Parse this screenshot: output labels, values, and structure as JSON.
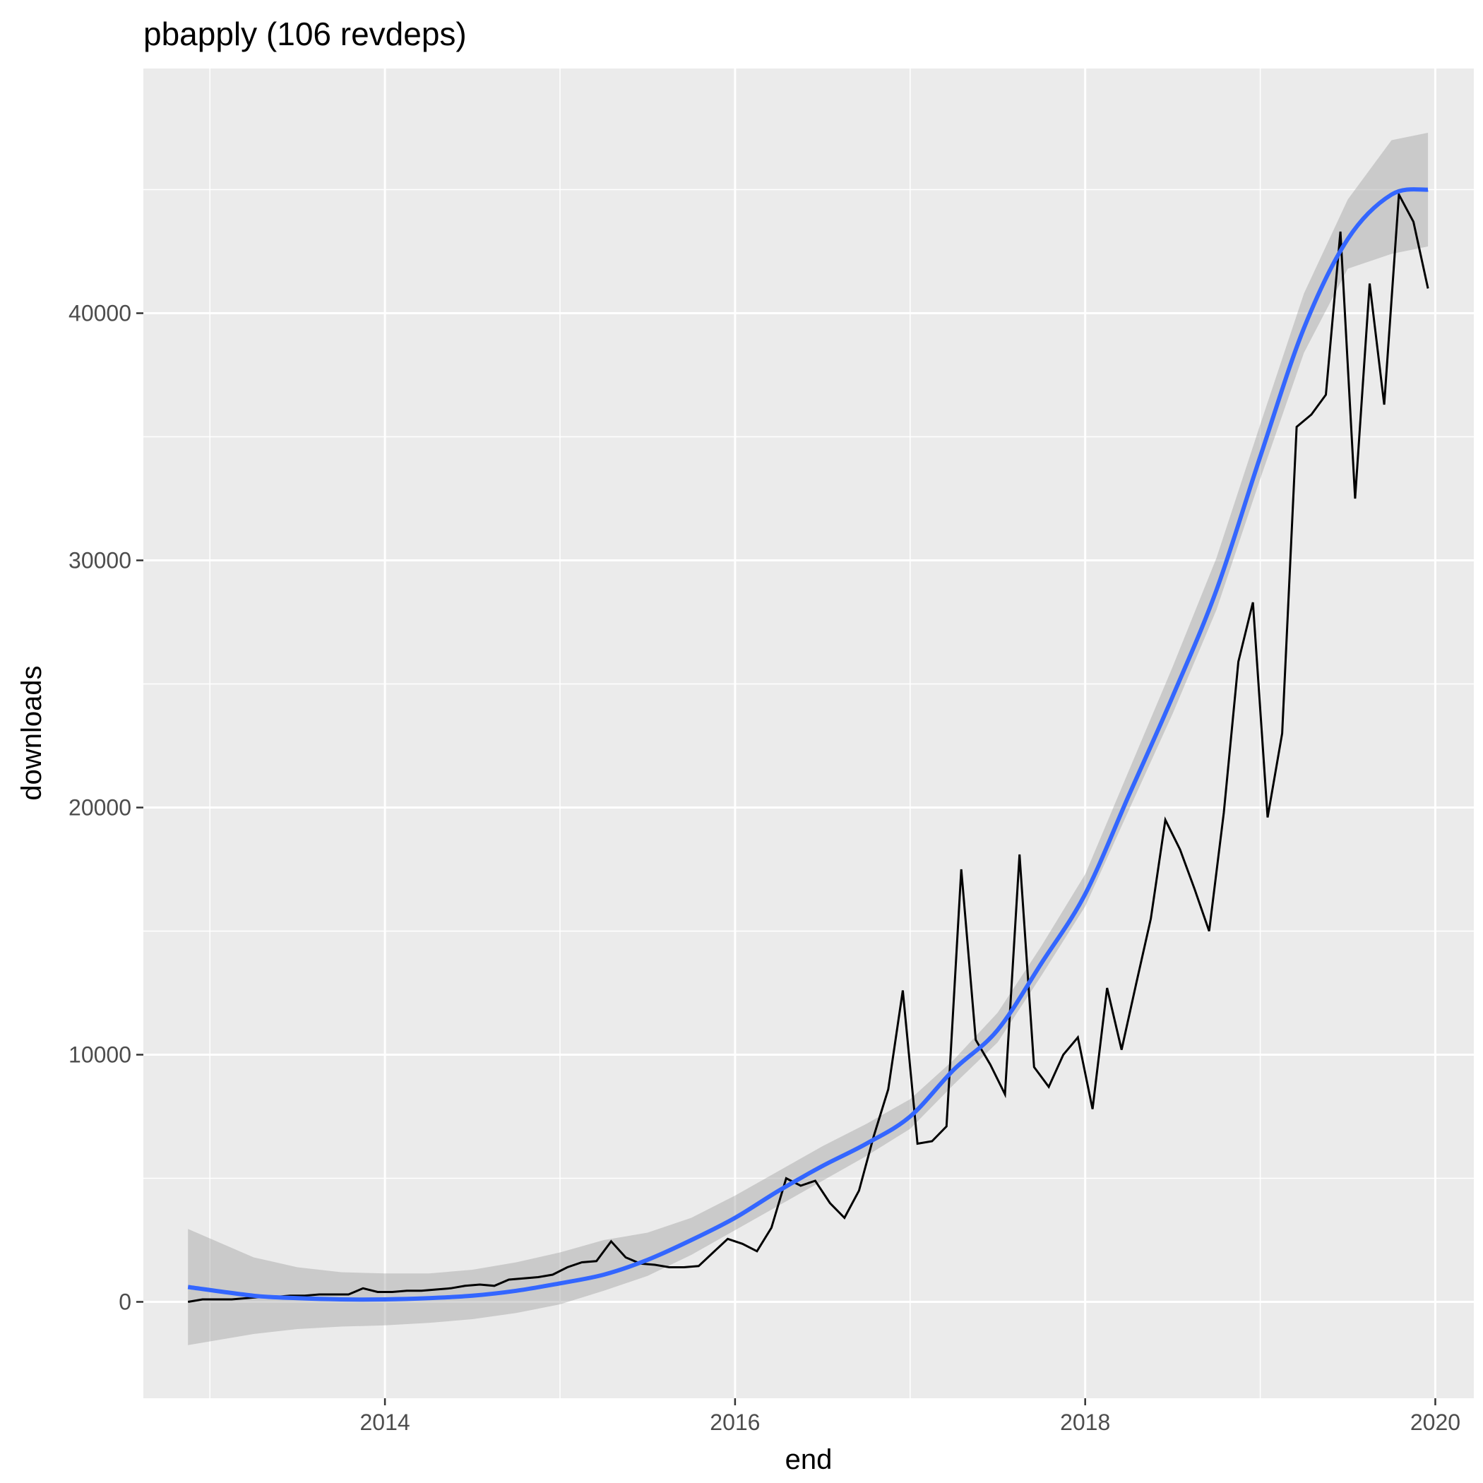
{
  "chart_data": {
    "type": "line",
    "title": "pbapply (106 revdeps)",
    "xlabel": "end",
    "ylabel": "downloads",
    "x_ticks": [
      {
        "label": "2014",
        "value": 2014.0
      },
      {
        "label": "2016",
        "value": 2016.0
      },
      {
        "label": "2018",
        "value": 2018.0
      },
      {
        "label": "2020",
        "value": 2020.0
      }
    ],
    "y_ticks": [
      {
        "label": "0",
        "value": 0
      },
      {
        "label": "10000",
        "value": 10000
      },
      {
        "label": "20000",
        "value": 20000
      },
      {
        "label": "30000",
        "value": 30000
      },
      {
        "label": "40000",
        "value": 40000
      }
    ],
    "xlim": [
      2012.62,
      2020.22
    ],
    "ylim": [
      -3900,
      49900
    ],
    "grid": true,
    "background": "#EBEBEB",
    "colors": {
      "line": "#000000",
      "smooth": "#3366FF",
      "ribbon": "#CCCCCC"
    },
    "series": [
      {
        "values": [
          [
            2012.875,
            0
          ],
          [
            2012.958,
            100
          ],
          [
            2013.042,
            100
          ],
          [
            2013.125,
            100
          ],
          [
            2013.208,
            150
          ],
          [
            2013.292,
            200
          ],
          [
            2013.375,
            200
          ],
          [
            2013.458,
            250
          ],
          [
            2013.542,
            250
          ],
          [
            2013.625,
            300
          ],
          [
            2013.708,
            300
          ],
          [
            2013.792,
            300
          ],
          [
            2013.875,
            550
          ],
          [
            2013.958,
            400
          ],
          [
            2014.042,
            400
          ],
          [
            2014.125,
            450
          ],
          [
            2014.208,
            450
          ],
          [
            2014.292,
            500
          ],
          [
            2014.375,
            550
          ],
          [
            2014.458,
            650
          ],
          [
            2014.542,
            700
          ],
          [
            2014.625,
            650
          ],
          [
            2014.708,
            900
          ],
          [
            2014.792,
            950
          ],
          [
            2014.875,
            1000
          ],
          [
            2014.958,
            1100
          ],
          [
            2015.042,
            1400
          ],
          [
            2015.125,
            1600
          ],
          [
            2015.208,
            1650
          ],
          [
            2015.292,
            2450
          ],
          [
            2015.375,
            1800
          ],
          [
            2015.458,
            1550
          ],
          [
            2015.542,
            1500
          ],
          [
            2015.625,
            1400
          ],
          [
            2015.708,
            1400
          ],
          [
            2015.792,
            1450
          ],
          [
            2015.875,
            2000
          ],
          [
            2015.958,
            2550
          ],
          [
            2016.042,
            2350
          ],
          [
            2016.125,
            2050
          ],
          [
            2016.208,
            3000
          ],
          [
            2016.292,
            5000
          ],
          [
            2016.375,
            4700
          ],
          [
            2016.458,
            4900
          ],
          [
            2016.542,
            4000
          ],
          [
            2016.625,
            3400
          ],
          [
            2016.708,
            4500
          ],
          [
            2016.792,
            6700
          ],
          [
            2016.875,
            8600
          ],
          [
            2016.958,
            12600
          ],
          [
            2017.042,
            6400
          ],
          [
            2017.125,
            6500
          ],
          [
            2017.208,
            7100
          ],
          [
            2017.292,
            17500
          ],
          [
            2017.375,
            10600
          ],
          [
            2017.458,
            9600
          ],
          [
            2017.542,
            8400
          ],
          [
            2017.625,
            18100
          ],
          [
            2017.708,
            9500
          ],
          [
            2017.792,
            8700
          ],
          [
            2017.875,
            10000
          ],
          [
            2017.958,
            10700
          ],
          [
            2018.042,
            7800
          ],
          [
            2018.125,
            12700
          ],
          [
            2018.208,
            10200
          ],
          [
            2018.292,
            12900
          ],
          [
            2018.375,
            15500
          ],
          [
            2018.458,
            19500
          ],
          [
            2018.542,
            18300
          ],
          [
            2018.625,
            16700
          ],
          [
            2018.708,
            15000
          ],
          [
            2018.792,
            19800
          ],
          [
            2018.875,
            25900
          ],
          [
            2018.958,
            28300
          ],
          [
            2019.042,
            19600
          ],
          [
            2019.125,
            23000
          ],
          [
            2019.208,
            35400
          ],
          [
            2019.292,
            35900
          ],
          [
            2019.375,
            36700
          ],
          [
            2019.458,
            43300
          ],
          [
            2019.542,
            32500
          ],
          [
            2019.625,
            41200
          ],
          [
            2019.708,
            36300
          ],
          [
            2019.792,
            44800
          ],
          [
            2019.875,
            43700
          ],
          [
            2019.958,
            41000
          ]
        ]
      }
    ],
    "smooth": {
      "method": "loess",
      "x": [
        2012.875,
        2013.25,
        2013.5,
        2013.75,
        2014.0,
        2014.25,
        2014.5,
        2014.75,
        2015.0,
        2015.25,
        2015.5,
        2015.75,
        2016.0,
        2016.25,
        2016.5,
        2016.75,
        2017.0,
        2017.25,
        2017.5,
        2017.75,
        2018.0,
        2018.25,
        2018.5,
        2018.75,
        2019.0,
        2019.25,
        2019.5,
        2019.75,
        2019.958
      ],
      "fit": [
        600,
        250,
        150,
        100,
        100,
        150,
        250,
        450,
        750,
        1100,
        1700,
        2500,
        3400,
        4500,
        5500,
        6400,
        7500,
        9400,
        11000,
        13700,
        16500,
        20500,
        24500,
        28800,
        34200,
        39400,
        43000,
        44800,
        45000
      ],
      "lower": [
        -1750,
        -1300,
        -1100,
        -1000,
        -950,
        -850,
        -700,
        -450,
        -100,
        450,
        1050,
        1900,
        2900,
        3900,
        4900,
        5900,
        7000,
        8800,
        10500,
        13200,
        16000,
        19900,
        23800,
        28000,
        33300,
        38400,
        41800,
        42400,
        42700
      ],
      "upper": [
        2950,
        1800,
        1400,
        1200,
        1150,
        1150,
        1300,
        1600,
        2000,
        2500,
        2800,
        3400,
        4300,
        5300,
        6300,
        7200,
        8200,
        9800,
        11700,
        14400,
        17300,
        21500,
        25700,
        30100,
        35500,
        40800,
        44600,
        47000,
        47300
      ]
    }
  }
}
